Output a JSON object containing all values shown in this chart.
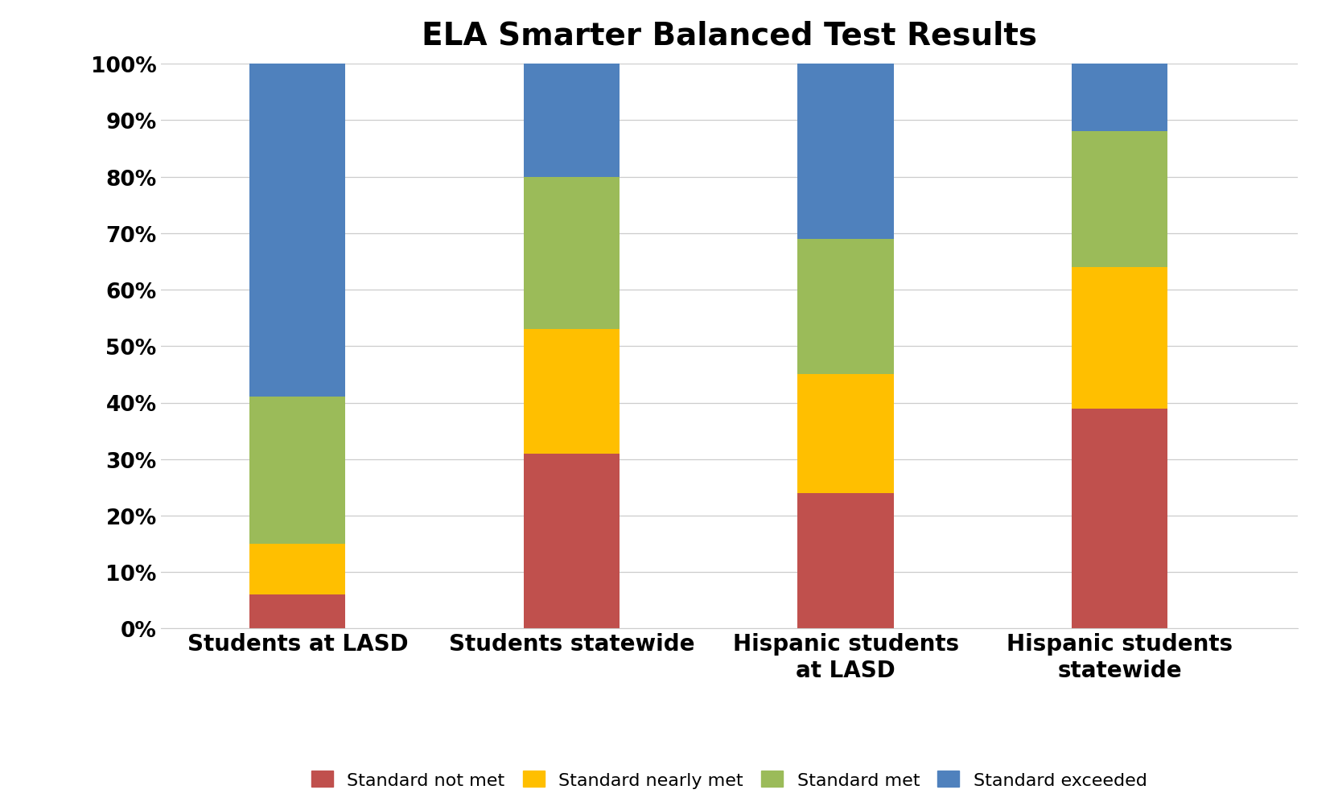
{
  "title": "ELA Smarter Balanced Test Results",
  "categories": [
    "Students at LASD",
    "Students statewide",
    "Hispanic students\nat LASD",
    "Hispanic students\nstatewide"
  ],
  "series": {
    "Standard not met": [
      6,
      31,
      24,
      39
    ],
    "Standard nearly met": [
      9,
      22,
      21,
      25
    ],
    "Standard met": [
      26,
      27,
      24,
      24
    ],
    "Standard exceeded": [
      59,
      20,
      31,
      12
    ]
  },
  "colors": {
    "Standard not met": "#C0504D",
    "Standard nearly met": "#FFBF00",
    "Standard met": "#9BBB59",
    "Standard exceeded": "#4F81BD"
  },
  "ylim": [
    0,
    100
  ],
  "yticks": [
    0,
    10,
    20,
    30,
    40,
    50,
    60,
    70,
    80,
    90,
    100
  ],
  "ytick_labels": [
    "0%",
    "10%",
    "20%",
    "30%",
    "40%",
    "50%",
    "60%",
    "70%",
    "80%",
    "90%",
    "100%"
  ],
  "title_fontsize": 28,
  "tick_fontsize": 19,
  "xtick_fontsize": 20,
  "legend_fontsize": 16,
  "bar_width": 0.35,
  "background_color": "#ffffff",
  "grid_color": "#cccccc"
}
